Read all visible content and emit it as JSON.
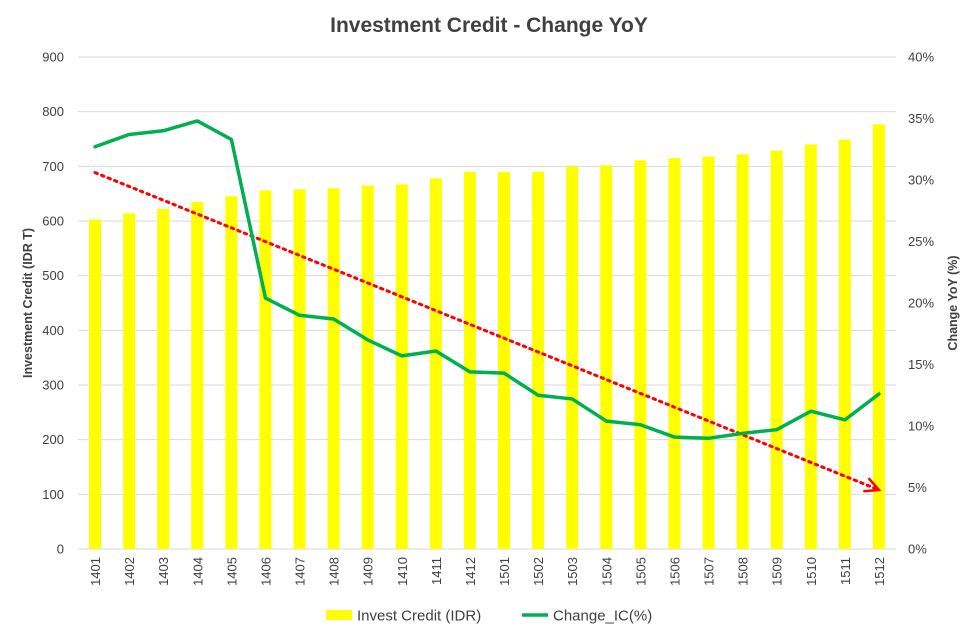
{
  "chart_data": {
    "type": "bar+line",
    "title": "Investment Credit - Change YoY",
    "ylabel": "Investment Credit (IDR T)",
    "y2label": "Change YoY (%)",
    "ylim": [
      0,
      900
    ],
    "y2lim": [
      0,
      40
    ],
    "yticks": [
      "0",
      "100",
      "200",
      "300",
      "400",
      "500",
      "600",
      "700",
      "800",
      "900"
    ],
    "y2ticks": [
      "0%",
      "5%",
      "10%",
      "15%",
      "20%",
      "25%",
      "30%",
      "35%",
      "40%"
    ],
    "categories": [
      "1401",
      "1402",
      "1403",
      "1404",
      "1405",
      "1406",
      "1407",
      "1408",
      "1409",
      "1410",
      "1411",
      "1412",
      "1501",
      "1502",
      "1503",
      "1504",
      "1505",
      "1506",
      "1507",
      "1508",
      "1509",
      "1510",
      "1511",
      "1512"
    ],
    "series": [
      {
        "name": "Invest Credit (IDR)",
        "type": "bar",
        "axis": "left",
        "color": "#FFFF00",
        "values": [
          603,
          614,
          622,
          635,
          645,
          656,
          658,
          660,
          665,
          667,
          678,
          690,
          690,
          690,
          700,
          702,
          711,
          715,
          718,
          722,
          729,
          740,
          749,
          777
        ]
      },
      {
        "name": "Change_IC(%)",
        "type": "line",
        "axis": "right",
        "color": "#00B050",
        "values": [
          32.7,
          33.7,
          34.0,
          34.8,
          33.3,
          20.4,
          19.0,
          18.7,
          17.0,
          15.7,
          16.1,
          14.4,
          14.3,
          12.5,
          12.2,
          10.4,
          10.1,
          9.1,
          9.0,
          9.4,
          9.7,
          11.2,
          10.5,
          12.6
        ]
      }
    ],
    "trendline": {
      "type": "linear",
      "axis": "right",
      "color": "#FF0000",
      "style": "dotted",
      "arrow_end": true,
      "start": {
        "category": "1401",
        "value": 30.6
      },
      "end": {
        "category": "1512",
        "value": 4.8
      }
    },
    "legend_position": "bottom",
    "grid": true,
    "grid_color": "#D9D9D9"
  }
}
